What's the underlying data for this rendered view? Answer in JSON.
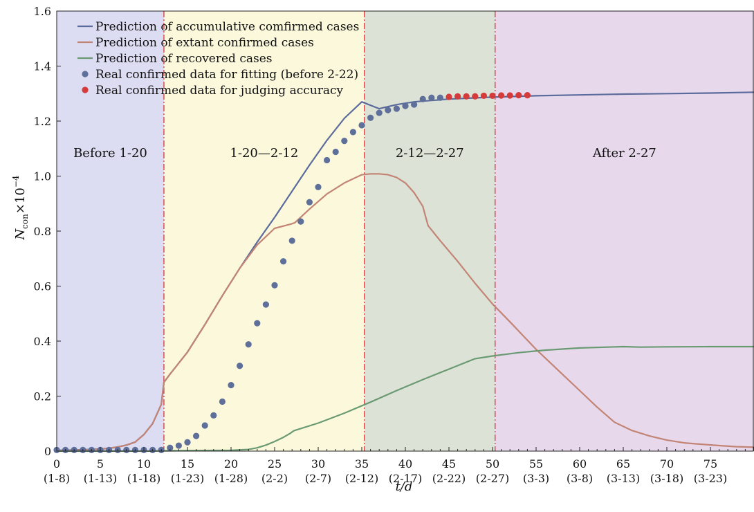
{
  "chart_data": {
    "type": "line",
    "xlabel": "t/d",
    "ylabel": "N_con×10^−4",
    "xlim": [
      0,
      80
    ],
    "ylim": [
      0,
      1.6
    ],
    "x_ticks": [
      0,
      5,
      10,
      15,
      20,
      25,
      30,
      35,
      40,
      45,
      50,
      55,
      60,
      65,
      70,
      75
    ],
    "x_tick_dates": [
      "(1-8)",
      "(1-13)",
      "(1-18)",
      "(1-23)",
      "(1-28)",
      "(2-2)",
      "(2-7)",
      "(2-12)",
      "(2-17)",
      "(2-22)",
      "(2-27)",
      "(3-3)",
      "(3-8)",
      "(3-13)",
      "(3-18)",
      "(3-23)"
    ],
    "y_ticks": [
      0,
      0.2,
      0.4,
      0.6,
      0.8,
      1.0,
      1.2,
      1.4,
      1.6
    ],
    "y_tick_labels": [
      "0",
      "0.2",
      "0.4",
      "0.6",
      "0.8",
      "1.0",
      "1.2",
      "1.4",
      "1.6"
    ],
    "grid": false,
    "legend_placement": "top-left",
    "regions": [
      {
        "label": "Before 1-20",
        "x0": 0,
        "x1": 12.3,
        "color": "#dcdcf2"
      },
      {
        "label": "1-20—2-12",
        "x0": 12.3,
        "x1": 35.3,
        "color": "#fbf8dc"
      },
      {
        "label": "2-12—2-27",
        "x0": 35.3,
        "x1": 50.3,
        "color": "#dde2d6"
      },
      {
        "label": "After 2-27",
        "x0": 50.3,
        "x1": 80,
        "color": "#e8d8ec"
      }
    ],
    "boundaries": [
      12.3,
      35.3,
      50.3
    ],
    "boundary_color": "#d9343a",
    "series": [
      {
        "name": "Prediction of accumulative comfirmed cases",
        "kind": "line",
        "color": "#5a6b9c",
        "x": [
          0,
          2,
          4,
          6,
          7,
          8,
          9,
          10,
          11,
          12,
          12.3,
          13,
          15,
          17,
          19,
          21,
          23,
          25,
          27,
          29,
          31,
          33,
          35,
          37,
          39,
          41,
          43,
          45,
          47,
          50,
          55,
          60,
          65,
          70,
          75,
          80
        ],
        "y": [
          0.003,
          0.004,
          0.006,
          0.01,
          0.015,
          0.022,
          0.033,
          0.06,
          0.1,
          0.17,
          0.25,
          0.28,
          0.36,
          0.46,
          0.565,
          0.665,
          0.76,
          0.85,
          0.945,
          1.04,
          1.13,
          1.21,
          1.27,
          1.245,
          1.26,
          1.27,
          1.275,
          1.28,
          1.283,
          1.287,
          1.292,
          1.295,
          1.298,
          1.3,
          1.302,
          1.305
        ]
      },
      {
        "name": "Prediction of extant confirmed cases",
        "kind": "line",
        "color": "#c28474",
        "x": [
          0,
          2,
          4,
          6,
          7,
          8,
          9,
          10,
          11,
          12,
          12.3,
          13,
          15,
          17,
          19,
          21,
          23,
          25,
          26.8,
          27.3,
          29,
          31,
          33,
          35,
          36,
          37,
          38,
          39,
          40,
          41,
          42,
          42.6,
          44,
          46,
          48,
          50,
          52,
          55,
          58,
          60,
          62,
          64,
          66,
          68,
          70,
          72,
          74,
          76,
          78,
          80
        ],
        "y": [
          0.002,
          0.003,
          0.005,
          0.01,
          0.015,
          0.022,
          0.033,
          0.06,
          0.1,
          0.17,
          0.25,
          0.28,
          0.36,
          0.46,
          0.565,
          0.665,
          0.75,
          0.81,
          0.825,
          0.83,
          0.88,
          0.935,
          0.975,
          1.005,
          1.008,
          1.008,
          1.005,
          0.995,
          0.975,
          0.94,
          0.89,
          0.82,
          0.765,
          0.69,
          0.61,
          0.535,
          0.47,
          0.37,
          0.28,
          0.22,
          0.16,
          0.105,
          0.075,
          0.055,
          0.04,
          0.03,
          0.025,
          0.02,
          0.016,
          0.014
        ]
      },
      {
        "name": "Prediction of recovered cases",
        "kind": "line",
        "color": "#6a9a72",
        "x": [
          0,
          10,
          15,
          20,
          22,
          23,
          24,
          25,
          26,
          26.8,
          27.2,
          30,
          33,
          36,
          39,
          42,
          45,
          48,
          50,
          53,
          56,
          60,
          65,
          67,
          70,
          75,
          80
        ],
        "y": [
          0.0,
          0.0,
          0.002,
          0.003,
          0.006,
          0.012,
          0.022,
          0.035,
          0.05,
          0.065,
          0.074,
          0.102,
          0.138,
          0.178,
          0.22,
          0.26,
          0.298,
          0.336,
          0.346,
          0.358,
          0.367,
          0.375,
          0.38,
          0.378,
          0.379,
          0.38,
          0.38
        ]
      },
      {
        "name": "Real confirmed data for fitting (before 2-22)",
        "kind": "scatter",
        "color": "#5e6f99",
        "x": [
          0,
          1,
          2,
          3,
          4,
          5,
          6,
          7,
          8,
          9,
          10,
          11,
          12,
          13,
          14,
          15,
          16,
          17,
          18,
          19,
          20,
          21,
          22,
          23,
          24,
          25,
          26,
          27,
          28,
          29,
          30,
          31,
          32,
          33,
          34,
          35,
          36,
          37,
          38,
          39,
          40,
          41,
          42,
          43,
          44
        ],
        "y": [
          0.004,
          0.004,
          0.004,
          0.004,
          0.004,
          0.004,
          0.004,
          0.004,
          0.004,
          0.004,
          0.004,
          0.004,
          0.004,
          0.012,
          0.02,
          0.032,
          0.055,
          0.093,
          0.13,
          0.18,
          0.24,
          0.31,
          0.388,
          0.465,
          0.533,
          0.603,
          0.69,
          0.765,
          0.835,
          0.905,
          0.96,
          1.058,
          1.088,
          1.128,
          1.16,
          1.185,
          1.212,
          1.23,
          1.24,
          1.245,
          1.255,
          1.26,
          1.28,
          1.285,
          1.285
        ]
      },
      {
        "name": "Real confirmed data for judging accuracy",
        "kind": "scatter",
        "color": "#d63b3b",
        "x": [
          45,
          46,
          47,
          48,
          49,
          50,
          51,
          52,
          53,
          54
        ],
        "y": [
          1.288,
          1.29,
          1.29,
          1.29,
          1.292,
          1.292,
          1.293,
          1.293,
          1.294,
          1.294
        ]
      }
    ]
  }
}
